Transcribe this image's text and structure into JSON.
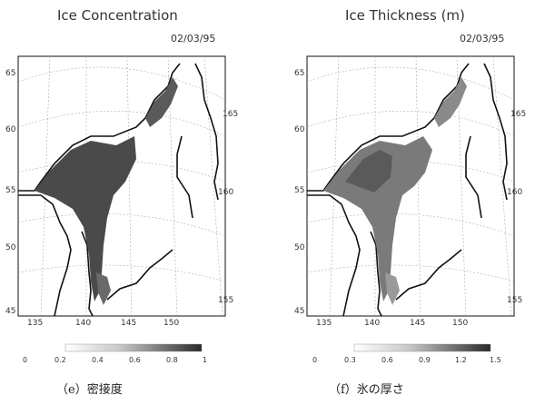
{
  "panels": [
    {
      "id": "e",
      "title": "Ice Concentration",
      "date": "02/03/95",
      "caption": "（e）密接度",
      "lat_labels": [
        "65",
        "60",
        "55",
        "50",
        "45"
      ],
      "lon_labels": [
        "135",
        "140",
        "145",
        "150"
      ],
      "lon_meridian_labels": [
        "165",
        "160",
        "155"
      ],
      "colorbar_ticks": [
        "0",
        "0.2",
        "0.4",
        "0.6",
        "0.8",
        "1"
      ]
    },
    {
      "id": "f",
      "title": "Ice Thickness (m)",
      "date": "02/03/95",
      "caption": "（f）氷の厚さ",
      "lat_labels": [
        "65",
        "60",
        "55",
        "50",
        "45"
      ],
      "lon_labels": [
        "135",
        "140",
        "145",
        "150"
      ],
      "lon_meridian_labels": [
        "165",
        "160",
        "155"
      ],
      "colorbar_ticks": [
        "0",
        "0.3",
        "0.6",
        "0.9",
        "1.2",
        "1.5"
      ]
    }
  ],
  "colors": {
    "ice_dark": "#4a4a4a",
    "ice_mid": "#7a7a7a",
    "ice_light": "#b8b8b8",
    "coast": "#111111",
    "grid": "#9a9a9a"
  }
}
